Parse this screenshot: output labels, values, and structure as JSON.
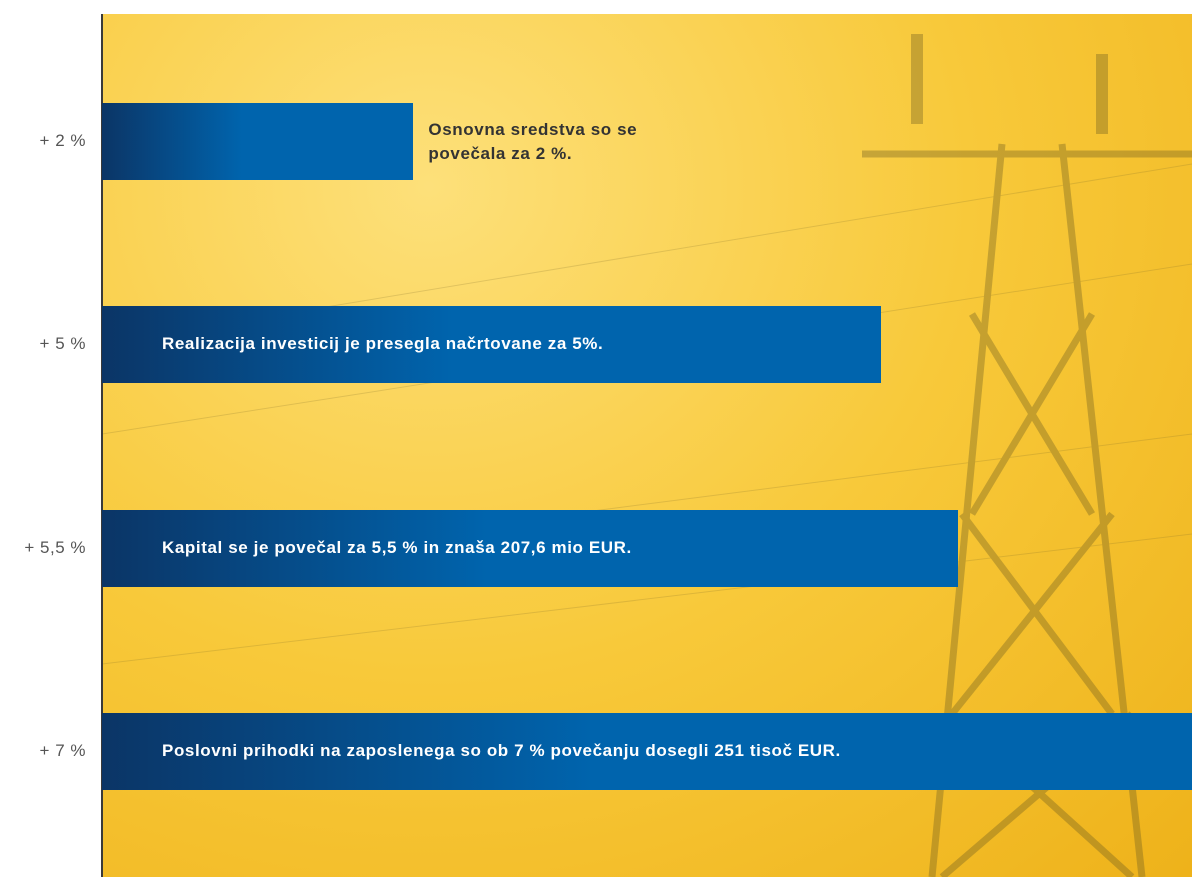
{
  "chart_data": {
    "type": "hbar",
    "categories": [
      "Osnovna sredstva so se povečala za 2 %.",
      "Realizacija investicij je presegla načrtovane za 5%.",
      "Kapital se je povečal za 5,5 % in znaša 207,6 mio EUR.",
      "Poslovni prihodki na zaposlenega so ob 7 % povečanju dosegli 251 tisoč EUR."
    ],
    "values": [
      2,
      5,
      5.5,
      7
    ],
    "value_labels": [
      "+ 2 %",
      "+ 5 %",
      "+ 5,5 %",
      "+ 7 %"
    ],
    "color": "#0064ad",
    "xlim": [
      0,
      7
    ]
  }
}
